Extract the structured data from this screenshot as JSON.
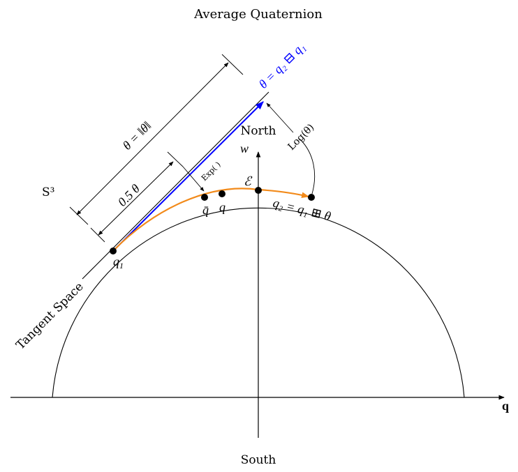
{
  "title": "Average Quaternion",
  "labels": {
    "north": "North",
    "south": "South",
    "w_axis": "w",
    "q_axis": "q",
    "sphere": "S³",
    "tangent_space": "Tangent Space",
    "q1": "q",
    "q1_sub": "1",
    "q2_def": "q₂ = q₁ ⊞ θ",
    "qbar": "q̄",
    "q": "q",
    "error": "ℰ",
    "theta_def": "θ = q₂ ⊟ q₁",
    "theta_norm": "θ = ‖θ‖",
    "half_theta": "0.5 θ",
    "exp": "Exp( )",
    "log": "Log(θ)"
  },
  "colors": {
    "theta_vector": "#0000ff",
    "geodesic_arc": "#f28a1a",
    "line": "#000000"
  }
}
